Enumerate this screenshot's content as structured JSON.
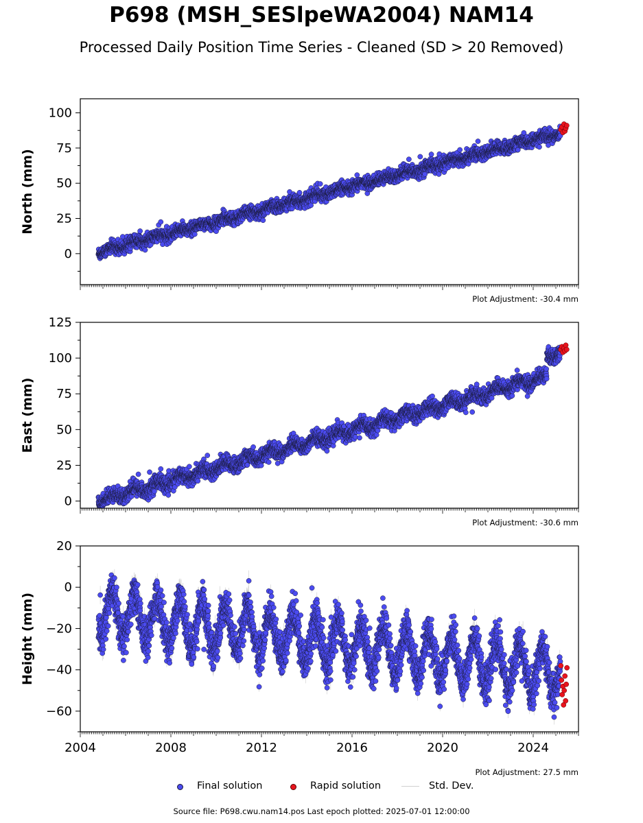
{
  "title": "P698 (MSH_SESlpeWA2004) NAM14",
  "subtitle": "Processed Daily Position Time Series - Cleaned (SD > 20 Removed)",
  "footer": "Source file: P698.cwu.nam14.pos  Last epoch plotted: 2025-07-01 12:00:00",
  "legend": {
    "final": "Final solution",
    "rapid": "Rapid solution",
    "std": "Std. Dev."
  },
  "colors": {
    "final": "#4b4bf0",
    "rapid": "#e8141e",
    "std": "#bdbdbd",
    "marker_edge": "#1a1a3a"
  },
  "chart_data": [
    {
      "type": "scatter",
      "ylabel": "North (mm)",
      "adjustment": "Plot Adjustment: -30.4 mm",
      "xlim": [
        2004.0,
        2026.0
      ],
      "ylim": [
        -22,
        110
      ],
      "yticks": [
        0,
        25,
        50,
        75,
        100
      ],
      "xticks": [
        2004,
        2008,
        2012,
        2016,
        2020,
        2024
      ],
      "show_xtick_labels": false,
      "series": [
        {
          "name": "Final solution",
          "model": {
            "start": 2004.8,
            "end": 2025.2,
            "y0": 1,
            "rate": 4.15,
            "annual_amp": 1.2,
            "noise": 2.2
          }
        },
        {
          "name": "Rapid solution",
          "x": [
            2025.22,
            2025.27,
            2025.31,
            2025.36,
            2025.4,
            2025.44,
            2025.48
          ],
          "y": [
            88,
            90,
            86,
            92,
            87,
            89,
            91
          ]
        }
      ]
    },
    {
      "type": "scatter",
      "ylabel": "East (mm)",
      "adjustment": "Plot Adjustment: -30.6 mm",
      "xlim": [
        2004.0,
        2026.0
      ],
      "ylim": [
        -5,
        125
      ],
      "yticks": [
        0,
        25,
        50,
        75,
        100,
        125
      ],
      "xticks": [
        2004,
        2008,
        2012,
        2016,
        2020,
        2024
      ],
      "show_xtick_labels": false,
      "series": [
        {
          "name": "Final solution",
          "model": {
            "start": 2004.8,
            "end": 2025.2,
            "y0": 0,
            "rate": 4.4,
            "annual_amp": 2.5,
            "noise": 2.6,
            "late_offset": {
              "after": 2024.6,
              "shift": 14
            }
          }
        },
        {
          "name": "Rapid solution",
          "x": [
            2025.22,
            2025.27,
            2025.31,
            2025.36,
            2025.4,
            2025.44,
            2025.48
          ],
          "y": [
            106,
            108,
            104,
            107,
            105,
            109,
            106
          ]
        }
      ]
    },
    {
      "type": "scatter",
      "ylabel": "Height (mm)",
      "adjustment": "Plot Adjustment: 27.5 mm",
      "xlim": [
        2004.0,
        2026.0
      ],
      "ylim": [
        -70,
        20
      ],
      "yticks": [
        -60,
        -40,
        -20,
        0,
        20
      ],
      "xticks": [
        2004,
        2008,
        2012,
        2016,
        2020,
        2024
      ],
      "xtick_labels": [
        "2004",
        "2008",
        "2012",
        "2016",
        "2020",
        "2024"
      ],
      "show_xtick_labels": true,
      "series": [
        {
          "name": "Final solution",
          "model": {
            "start": 2004.8,
            "end": 2025.2,
            "y0": -12,
            "rate": -1.45,
            "annual_amp": 11,
            "noise": 4.5
          }
        },
        {
          "name": "Rapid solution",
          "x": [
            2025.22,
            2025.25,
            2025.28,
            2025.31,
            2025.34,
            2025.37,
            2025.4,
            2025.43,
            2025.46,
            2025.49
          ],
          "y": [
            -38,
            -45,
            -52,
            -48,
            -57,
            -50,
            -43,
            -55,
            -47,
            -39
          ]
        }
      ]
    }
  ]
}
